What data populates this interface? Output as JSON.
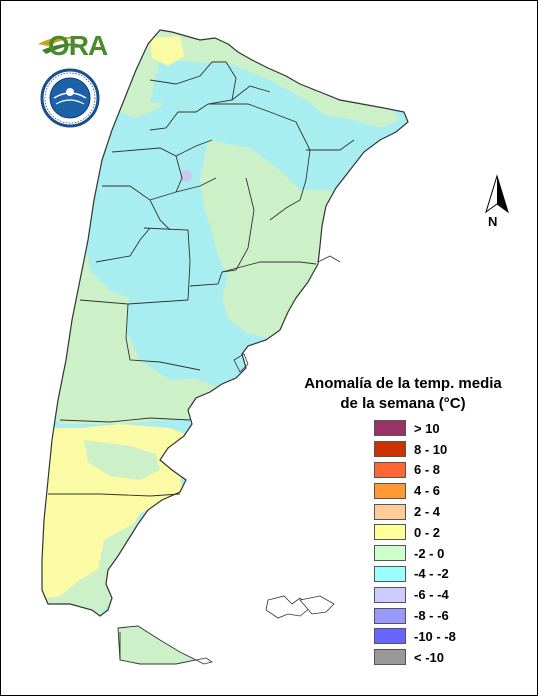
{
  "logo": {
    "text": "ORA"
  },
  "north_arrow": {
    "label": "N"
  },
  "legend": {
    "title_line1": "Anomalía de la temp. media",
    "title_line2": "de la semana (°C)",
    "items": [
      {
        "label": "> 10",
        "color": "#993366"
      },
      {
        "label": "8 - 10",
        "color": "#cc3300"
      },
      {
        "label": "6 - 8",
        "color": "#ff6633"
      },
      {
        "label": "4 - 6",
        "color": "#ff9933"
      },
      {
        "label": "2 - 4",
        "color": "#ffcc99"
      },
      {
        "label": "0 - 2",
        "color": "#ffff99"
      },
      {
        "label": "-2 - 0",
        "color": "#ccffcc"
      },
      {
        "label": "-4 - -2",
        "color": "#99ffff"
      },
      {
        "label": "-6 - -4",
        "color": "#ccccff"
      },
      {
        "label": "-8 - -6",
        "color": "#9999ff"
      },
      {
        "label": "-10 - -8",
        "color": "#6666ff"
      },
      {
        "label": "< -10",
        "color": "#999999"
      }
    ]
  },
  "map_colors": {
    "cyan": "#a8eef0",
    "green": "#ccf0c8",
    "yellow": "#fbfba6",
    "lavender": "#c8c8f0",
    "border": "#333333"
  }
}
